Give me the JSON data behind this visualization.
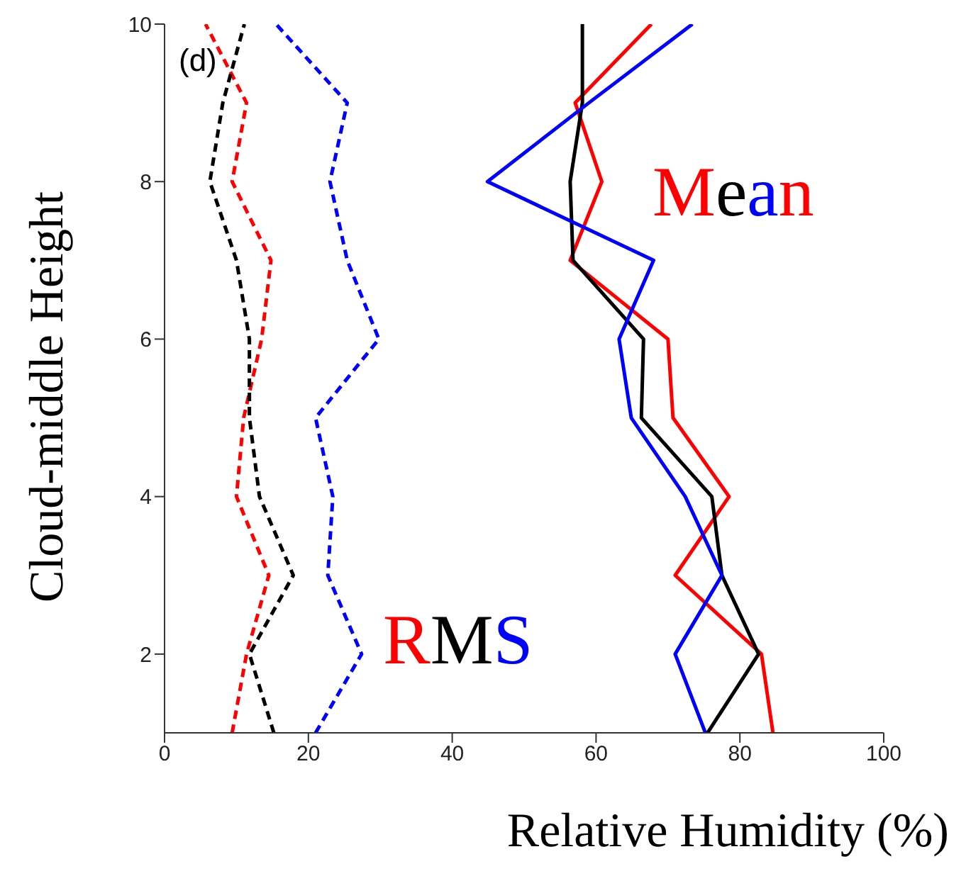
{
  "chart_data": {
    "type": "line",
    "orientation": "horizontal",
    "xlabel": "Relative Humidity (%)",
    "ylabel": "Cloud-middle Height",
    "annotations": [
      "(d)",
      "RMS",
      "Mean"
    ],
    "x": [
      1,
      2,
      3,
      4,
      5,
      6,
      7,
      8,
      9,
      10
    ],
    "xlim": [
      0,
      100
    ],
    "xticks": [
      0,
      20,
      40,
      60,
      80,
      100
    ],
    "ylim": [
      1,
      10
    ],
    "yticks": [
      2,
      4,
      6,
      8,
      10
    ],
    "grid": false,
    "legend": false,
    "marker": "none",
    "series": [
      {
        "color": "#ff0000",
        "line_style": "dashed",
        "values": [
          9.4,
          11.4,
          14.5,
          10,
          11,
          13.5,
          14.8,
          9.4,
          11.4,
          5.7
        ]
      },
      {
        "color": "#000000",
        "line_style": "dashed",
        "values": [
          15.2,
          11.8,
          17.9,
          13.2,
          11.8,
          11.8,
          10,
          6.3,
          8.1,
          11.1
        ]
      },
      {
        "color": "#0000ff",
        "line_style": "dashed",
        "values": [
          21,
          27.4,
          22.7,
          23.4,
          21,
          29.8,
          25.4,
          23,
          25.4,
          15.5
        ]
      },
      {
        "color": "#ff0000",
        "line_style": "solid",
        "values": [
          84.6,
          83,
          71,
          78.5,
          70.7,
          70,
          56.4,
          60.8,
          57.1,
          67.7
        ]
      },
      {
        "color": "#000000",
        "line_style": "solid",
        "values": [
          75.5,
          82.6,
          77.5,
          76.1,
          66.3,
          66.6,
          56.8,
          56.4,
          58.1,
          58.1
        ]
      },
      {
        "color": "#0000ff",
        "line_style": "solid",
        "values": [
          75.2,
          71,
          77.5,
          72.4,
          64.9,
          63.2,
          68,
          44.9,
          59,
          73.4
        ]
      }
    ]
  }
}
